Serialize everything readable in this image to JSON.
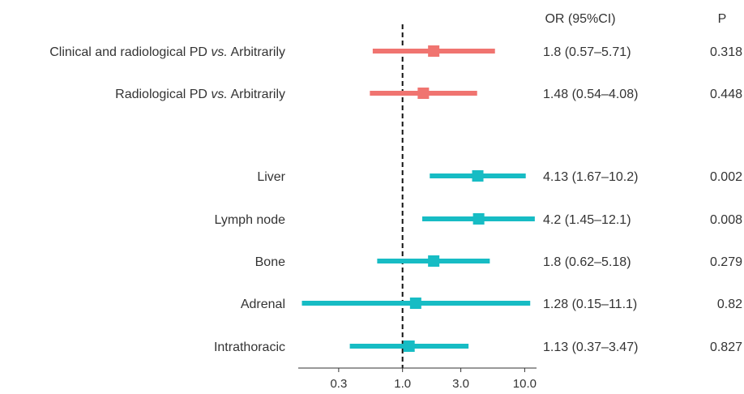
{
  "chart_data": {
    "type": "forest",
    "x_scale": "log",
    "xlim": [
      0.14,
      12.5
    ],
    "reference_line": 1.0,
    "x_ticks": [
      {
        "value": 0.3,
        "label": "0.3"
      },
      {
        "value": 1.0,
        "label": "1.0"
      },
      {
        "value": 3.0,
        "label": "3.0"
      },
      {
        "value": 10.0,
        "label": "10.0"
      }
    ],
    "headers": {
      "or": "OR (95%CI)",
      "p": "P"
    },
    "colors": {
      "group1": "#f07470",
      "group2": "#17bcc4",
      "reference": "#111111"
    },
    "rows": [
      {
        "label_main": "Clinical and radiological PD ",
        "label_em": "vs.",
        "label_tail": " Arbitrarily",
        "or": 1.8,
        "lower": 0.57,
        "upper": 5.71,
        "or_text": "1.8 (0.57–5.71)",
        "p": "0.318",
        "group": "group1"
      },
      {
        "label_main": "Radiological PD ",
        "label_em": "vs.",
        "label_tail": " Arbitrarily",
        "or": 1.48,
        "lower": 0.54,
        "upper": 4.08,
        "or_text": "1.48 (0.54–4.08)",
        "p": "0.448",
        "group": "group1"
      },
      {
        "label_main": "Liver",
        "label_em": "",
        "label_tail": "",
        "or": 4.13,
        "lower": 1.67,
        "upper": 10.2,
        "or_text": "4.13 (1.67–10.2)",
        "p": "0.002",
        "group": "group2"
      },
      {
        "label_main": "Lymph node",
        "label_em": "",
        "label_tail": "",
        "or": 4.2,
        "lower": 1.45,
        "upper": 12.1,
        "or_text": "4.2 (1.45–12.1)",
        "p": "0.008",
        "group": "group2"
      },
      {
        "label_main": "Bone",
        "label_em": "",
        "label_tail": "",
        "or": 1.8,
        "lower": 0.62,
        "upper": 5.18,
        "or_text": "1.8 (0.62–5.18)",
        "p": "0.279",
        "group": "group2"
      },
      {
        "label_main": "Adrenal",
        "label_em": "",
        "label_tail": "",
        "or": 1.28,
        "lower": 0.15,
        "upper": 11.1,
        "or_text": "1.28 (0.15–11.1)",
        "p": "0.82",
        "group": "group2"
      },
      {
        "label_main": "Intrathoracic",
        "label_em": "",
        "label_tail": "",
        "or": 1.13,
        "lower": 0.37,
        "upper": 3.47,
        "or_text": "1.13 (0.37–3.47)",
        "p": "0.827",
        "group": "group2"
      }
    ]
  }
}
